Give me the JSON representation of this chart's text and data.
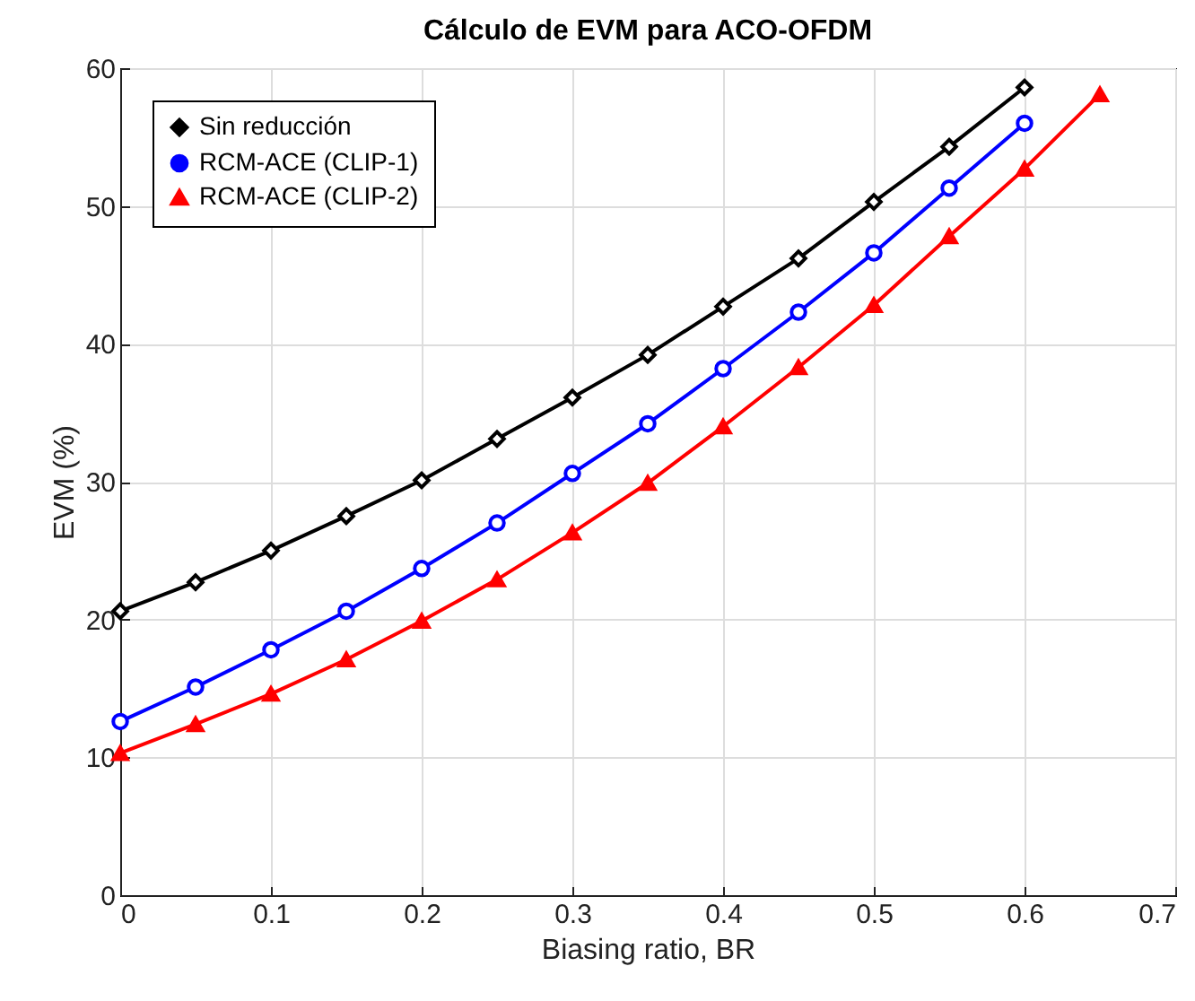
{
  "chart_data": {
    "type": "line",
    "title": "Cálculo de EVM para ACO-OFDM",
    "xlabel": "Biasing ratio, BR",
    "ylabel": "EVM (%)",
    "series": [
      {
        "name": "Sin reducción",
        "color": "#000000",
        "marker": "diamond",
        "x": [
          0,
          0.05,
          0.1,
          0.15,
          0.2,
          0.25,
          0.3,
          0.35,
          0.4,
          0.45,
          0.5,
          0.55,
          0.6
        ],
        "values": [
          20.6,
          22.7,
          25.0,
          27.5,
          30.1,
          33.1,
          36.1,
          39.2,
          42.7,
          46.2,
          50.3,
          54.3,
          58.6
        ]
      },
      {
        "name": "RCM-ACE (CLIP-1)",
        "color": "#0000ff",
        "marker": "circle",
        "x": [
          0,
          0.05,
          0.1,
          0.15,
          0.2,
          0.25,
          0.3,
          0.35,
          0.4,
          0.45,
          0.5,
          0.55,
          0.6
        ],
        "values": [
          12.6,
          15.1,
          17.8,
          20.6,
          23.7,
          27.0,
          30.6,
          34.2,
          38.2,
          42.3,
          46.6,
          51.3,
          56.0
        ]
      },
      {
        "name": "RCM-ACE (CLIP-2)",
        "color": "#ff0000",
        "marker": "triangle",
        "x": [
          0,
          0.05,
          0.1,
          0.15,
          0.2,
          0.25,
          0.3,
          0.35,
          0.4,
          0.45,
          0.5,
          0.55,
          0.6,
          0.65
        ],
        "values": [
          10.3,
          12.4,
          14.6,
          17.1,
          19.9,
          22.9,
          26.3,
          29.9,
          34.0,
          38.3,
          42.8,
          47.8,
          52.7,
          58.1
        ]
      }
    ],
    "xlim": [
      0,
      0.7
    ],
    "xticks": [
      0,
      0.1,
      0.2,
      0.3,
      0.4,
      0.5,
      0.6,
      0.7
    ],
    "ylim": [
      0,
      60
    ],
    "yticks": [
      0,
      10,
      20,
      30,
      40,
      50,
      60
    ],
    "grid": true,
    "legend": "top left",
    "line_style": "solid"
  }
}
